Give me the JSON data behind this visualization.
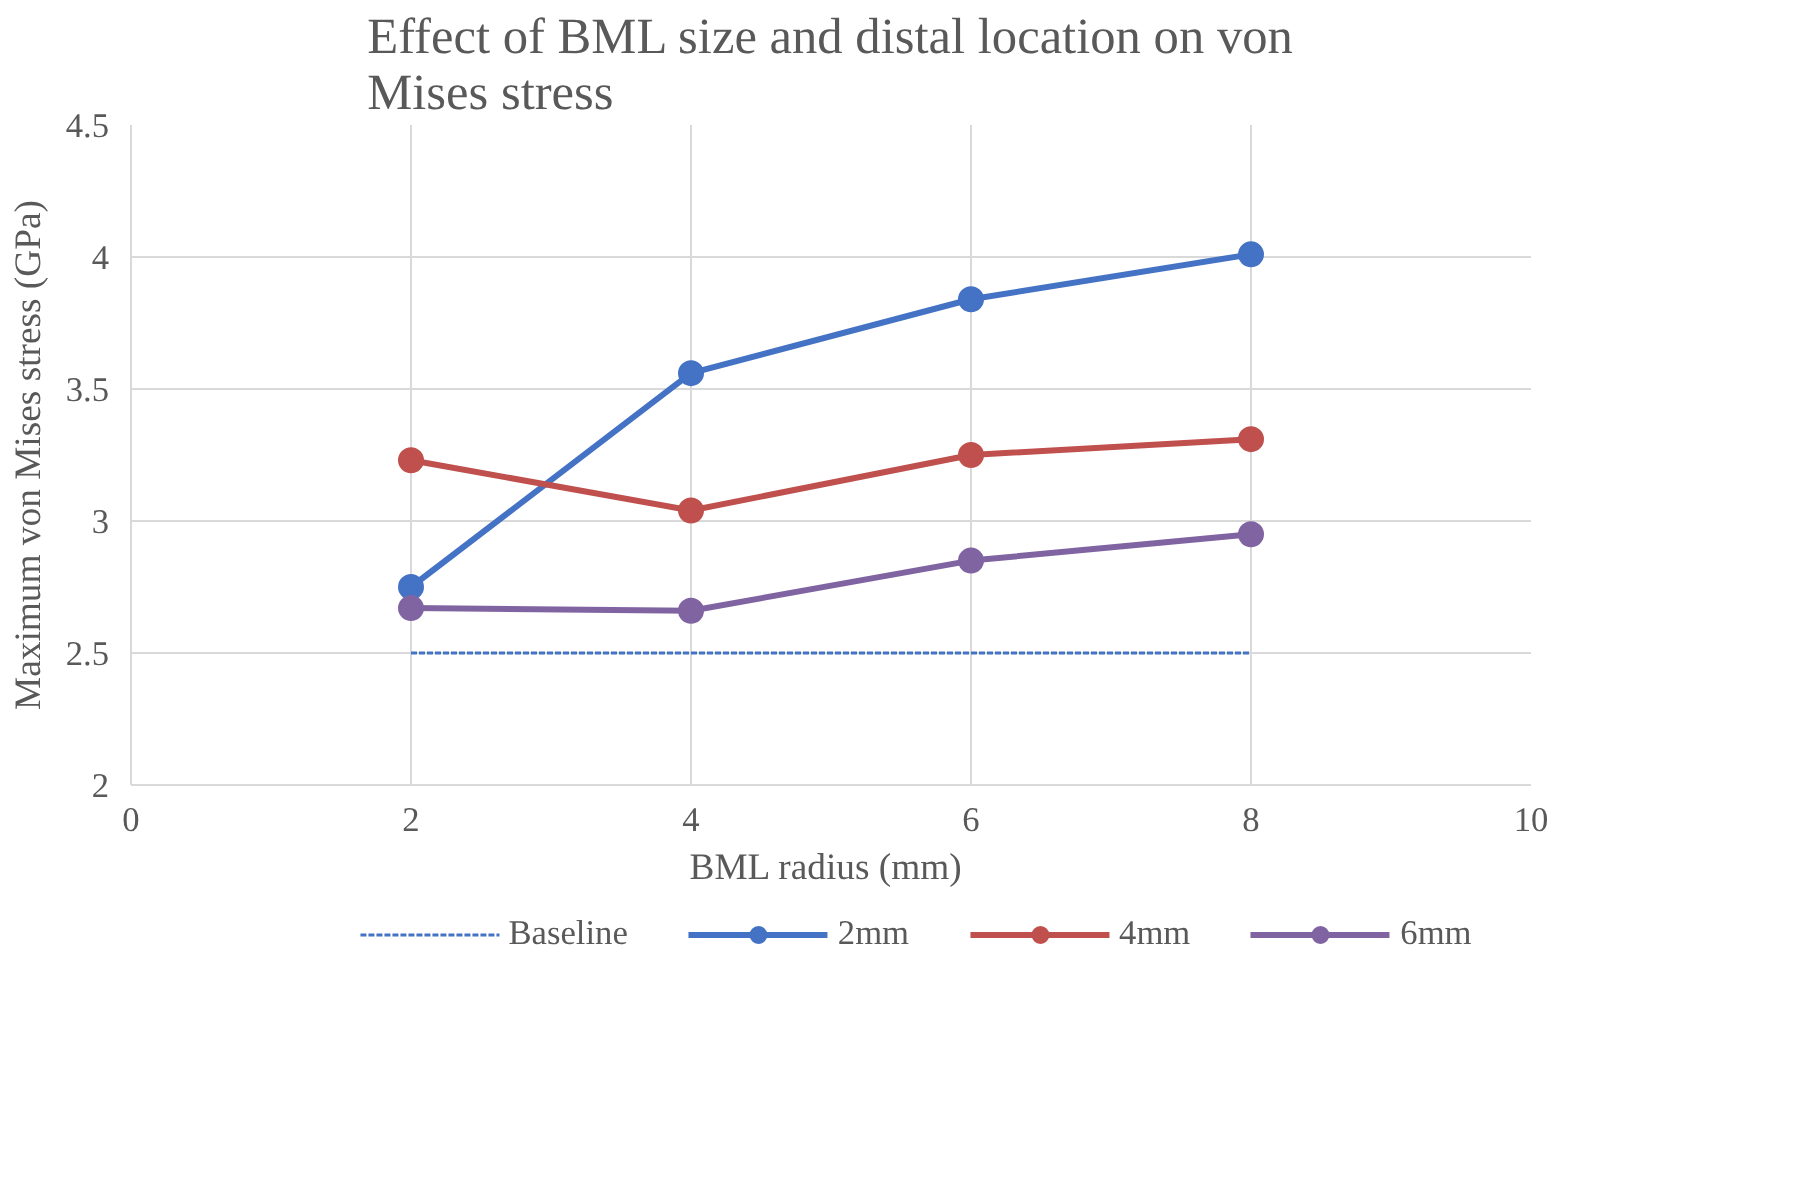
{
  "chart_data": {
    "type": "line",
    "title": "Effect of BML size and distal location on von Mises stress",
    "xlabel": "BML  radius (mm)",
    "ylabel": "Maximum von Mises stress (GPa)",
    "x": [
      2,
      4,
      6,
      8
    ],
    "series": [
      {
        "name": "Baseline",
        "color": "#4472c4",
        "values": [
          2.5,
          2.5,
          2.5,
          2.5
        ],
        "line_style": "dashed",
        "marker": "none"
      },
      {
        "name": "2mm",
        "color": "#4472c4",
        "values": [
          2.75,
          3.56,
          3.84,
          4.01
        ],
        "marker": "circle"
      },
      {
        "name": "4mm",
        "color": "#c0504d",
        "values": [
          3.23,
          3.04,
          3.25,
          3.31
        ],
        "marker": "circle"
      },
      {
        "name": "6mm",
        "color": "#8064a2",
        "values": [
          2.67,
          2.66,
          2.85,
          2.95
        ],
        "marker": "circle"
      }
    ],
    "xlim": [
      0,
      10
    ],
    "xticks": [
      0,
      2,
      4,
      6,
      8,
      10
    ],
    "ylim": [
      2,
      4.5
    ],
    "yticks": [
      2,
      2.5,
      3,
      3.5,
      4,
      4.5
    ],
    "grid": true,
    "legend": "bottom",
    "line_style": "solid"
  }
}
